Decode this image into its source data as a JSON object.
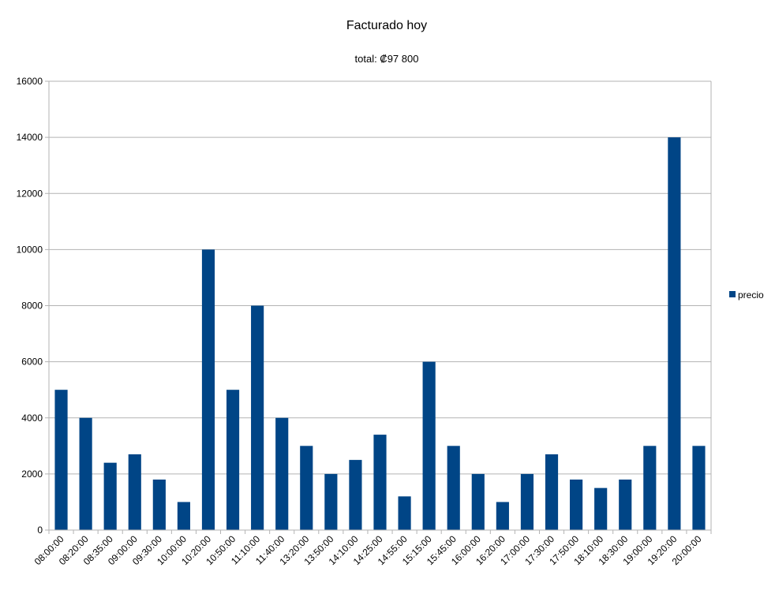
{
  "chart_data": {
    "type": "bar",
    "title": "Facturado hoy",
    "subtitle": "total: ₡97 800",
    "xlabel": "",
    "ylabel": "",
    "categories": [
      "08:00:00",
      "08:20:00",
      "08:35:00",
      "09:00:00",
      "09:30:00",
      "10:00:00",
      "10:20:00",
      "10:50:00",
      "11:10:00",
      "11:40:00",
      "13:20:00",
      "13:50:00",
      "14:10:00",
      "14:25:00",
      "14:55:00",
      "15:15:00",
      "15:45:00",
      "16:00:00",
      "16:20:00",
      "17:00:00",
      "17:30:00",
      "17:50:00",
      "18:10:00",
      "18:30:00",
      "19:00:00",
      "19:20:00",
      "20:00:00"
    ],
    "series": [
      {
        "name": "precio",
        "color": "#004586",
        "values": [
          5000,
          4000,
          2400,
          2700,
          1800,
          1000,
          10000,
          5000,
          8000,
          4000,
          3000,
          2000,
          2500,
          3400,
          1200,
          6000,
          3000,
          2000,
          1000,
          2000,
          2700,
          1800,
          1500,
          1800,
          3000,
          14000,
          3000
        ]
      }
    ],
    "ylim": [
      0,
      16000
    ],
    "yticks": [
      0,
      2000,
      4000,
      6000,
      8000,
      10000,
      12000,
      14000,
      16000
    ],
    "grid": true,
    "legend": "right"
  }
}
